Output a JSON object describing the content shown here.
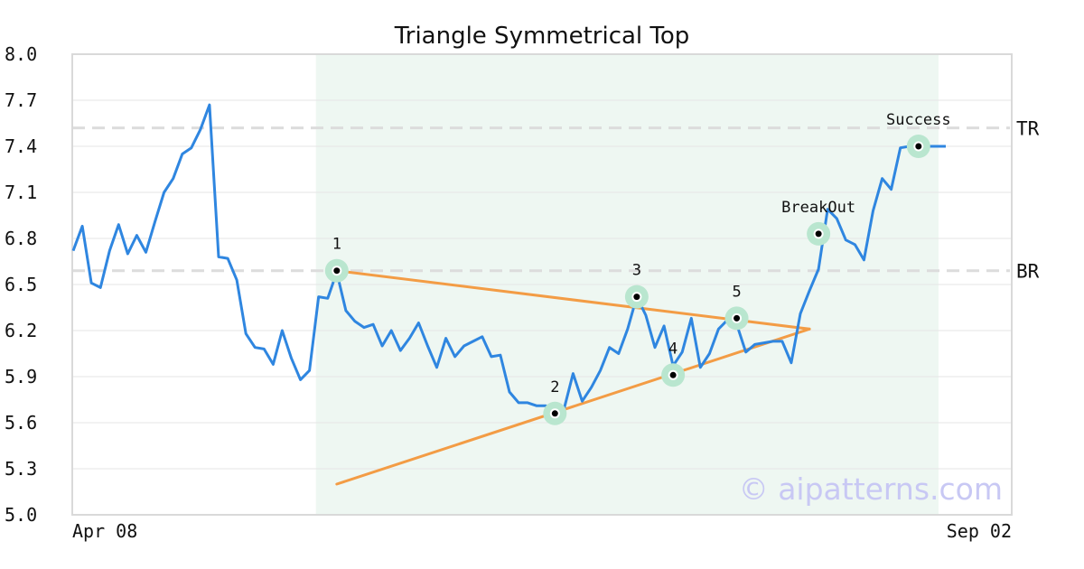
{
  "chart_data": {
    "type": "line",
    "title": "Triangle Symmetrical Top",
    "xlabel": "",
    "ylabel": "",
    "x_tick_labels": [
      "Apr 08",
      "Sep 02"
    ],
    "y_ticks": [
      "8.0",
      "7.7",
      "7.4",
      "7.1",
      "6.8",
      "6.5",
      "6.2",
      "5.9",
      "5.6",
      "5.3",
      "5.0"
    ],
    "ylim": [
      5.0,
      8.0
    ],
    "grid": "horizontal",
    "colors": {
      "price": "#2f86e0",
      "trendline": "#f39c45",
      "pattern_zone": "#eef7f2",
      "marker_halo": "#b9e6cf",
      "marker_dot": "#000000",
      "level_line": "#dcdcdc",
      "frame": "#d9d9d9"
    },
    "series": [
      {
        "values": [
          6.72,
          6.88,
          6.51,
          6.48,
          6.72,
          6.89,
          6.7,
          6.82,
          6.71,
          6.91,
          7.1,
          7.19,
          7.35,
          7.39,
          7.51,
          7.67,
          6.68,
          6.67,
          6.53,
          6.18,
          6.09,
          6.08,
          5.98,
          6.2,
          6.02,
          5.88,
          5.94,
          6.42,
          6.41,
          6.58,
          6.33,
          6.26,
          6.22,
          6.24,
          6.1,
          6.2,
          6.07,
          6.15,
          6.25,
          6.1,
          5.96,
          6.15,
          6.03,
          6.1,
          6.13,
          6.16,
          6.03,
          6.04,
          5.8,
          5.73,
          5.73,
          5.71,
          5.71,
          5.68,
          5.69,
          5.92,
          5.74,
          5.83,
          5.94,
          6.09,
          6.05,
          6.21,
          6.42,
          6.3,
          6.09,
          6.23,
          5.97,
          6.06,
          6.28,
          5.96,
          6.05,
          6.21,
          6.27,
          6.24,
          6.06,
          6.11,
          6.12,
          6.13,
          6.13,
          5.99,
          6.31,
          6.46,
          6.6,
          6.99,
          6.93,
          6.79,
          6.76,
          6.66,
          6.98,
          7.19,
          7.12,
          7.39,
          7.4,
          7.34,
          7.4,
          7.4,
          7.4
        ]
      }
    ],
    "pattern_zone": {
      "start_index": 27,
      "end_index": 95
    },
    "levels": [
      {
        "label": "TR",
        "value": 7.52
      },
      {
        "label": "BR",
        "value": 6.59
      }
    ],
    "trendlines": [
      {
        "from": {
          "index": 29,
          "value": 6.59
        },
        "to": {
          "index": 81,
          "value": 6.21
        }
      },
      {
        "from": {
          "index": 29,
          "value": 5.2
        },
        "to": {
          "index": 81,
          "value": 6.21
        }
      }
    ],
    "annotations": [
      {
        "label": "1",
        "index": 29,
        "value": 6.59
      },
      {
        "label": "2",
        "index": 53,
        "value": 5.66
      },
      {
        "label": "3",
        "index": 62,
        "value": 6.42
      },
      {
        "label": "4",
        "index": 66,
        "value": 5.91
      },
      {
        "label": "5",
        "index": 73,
        "value": 6.28
      },
      {
        "label": "BreakOut",
        "index": 82,
        "value": 6.83
      },
      {
        "label": "Success",
        "index": 93,
        "value": 7.4
      }
    ],
    "watermark": "© aipatterns.com"
  }
}
